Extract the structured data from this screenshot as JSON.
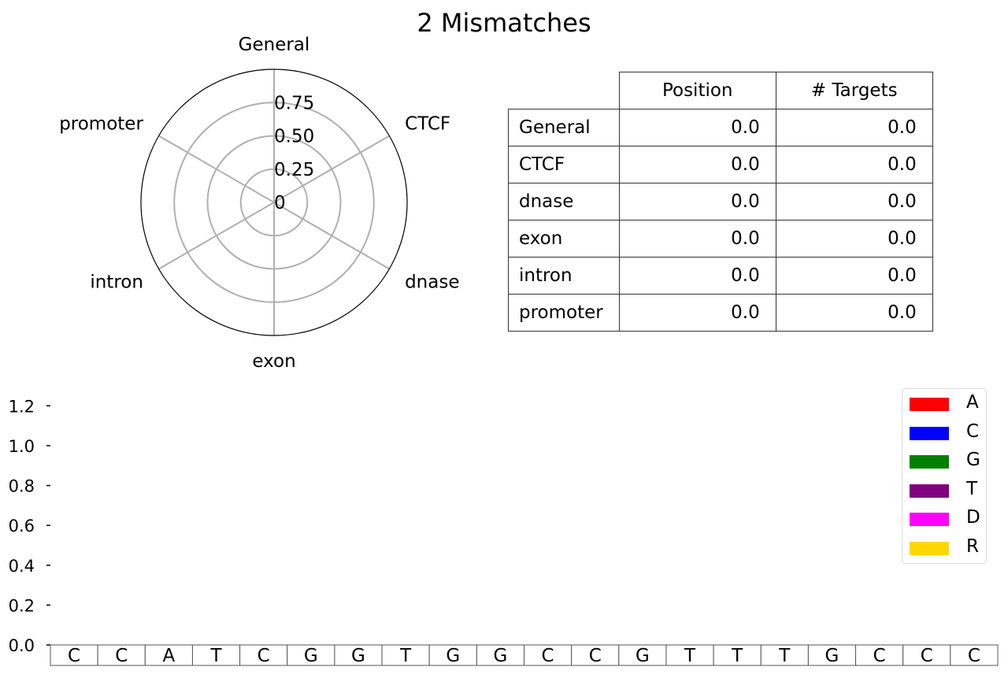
{
  "title": "2 Mismatches",
  "radar": {
    "type": "radar",
    "axes": [
      "General",
      "CTCF",
      "dnase",
      "exon",
      "intron",
      "promoter"
    ],
    "values": [
      0,
      0,
      0,
      0,
      0,
      0
    ],
    "rlim": [
      0,
      1.0
    ],
    "ring_values": [
      0.25,
      0.5,
      0.75
    ],
    "r_tick_labels": [
      "0",
      "0.25",
      "0.50",
      "0.75"
    ],
    "grid": true
  },
  "table": {
    "columns": [
      "",
      "Position",
      "# Targets"
    ],
    "rows": [
      {
        "label": "General",
        "position": "0.0",
        "targets": "0.0"
      },
      {
        "label": "CTCF",
        "position": "0.0",
        "targets": "0.0"
      },
      {
        "label": "dnase",
        "position": "0.0",
        "targets": "0.0"
      },
      {
        "label": "exon",
        "position": "0.0",
        "targets": "0.0"
      },
      {
        "label": "intron",
        "position": "0.0",
        "targets": "0.0"
      },
      {
        "label": "promoter",
        "position": "0.0",
        "targets": "0.0"
      }
    ]
  },
  "chart_data": {
    "type": "bar",
    "ylim": [
      0,
      1.3
    ],
    "y_ticks": [
      0.0,
      0.2,
      0.4,
      0.6,
      0.8,
      1.0,
      1.2
    ],
    "y_tick_labels": [
      "0.0",
      "0.2",
      "0.4",
      "0.6",
      "0.8",
      "1.0",
      "1.2"
    ],
    "sequence": [
      "C",
      "C",
      "A",
      "T",
      "C",
      "G",
      "G",
      "T",
      "G",
      "G",
      "C",
      "C",
      "G",
      "T",
      "T",
      "T",
      "G",
      "C",
      "C",
      "C"
    ],
    "series": [
      {
        "name": "A",
        "color": "#ff0000",
        "values": [
          0,
          0,
          0,
          0,
          0,
          0,
          0,
          0,
          0,
          0,
          0,
          0,
          0,
          0,
          0,
          0,
          0,
          0,
          0,
          0
        ]
      },
      {
        "name": "C",
        "color": "#0000ff",
        "values": [
          0,
          0,
          0,
          0,
          0,
          0,
          0,
          0,
          0,
          0,
          0,
          0,
          0,
          0,
          0,
          0,
          0,
          0,
          0,
          0
        ]
      },
      {
        "name": "G",
        "color": "#008000",
        "values": [
          0,
          0,
          0,
          0,
          0,
          0,
          0,
          0,
          0,
          0,
          0,
          0,
          0,
          0,
          0,
          0,
          0,
          0,
          0,
          0
        ]
      },
      {
        "name": "T",
        "color": "#800080",
        "values": [
          0,
          0,
          0,
          0,
          0,
          0,
          0,
          0,
          0,
          0,
          0,
          0,
          0,
          0,
          0,
          0,
          0,
          0,
          0,
          0
        ]
      },
      {
        "name": "D",
        "color": "#ff00ff",
        "values": [
          0,
          0,
          0,
          0,
          0,
          0,
          0,
          0,
          0,
          0,
          0,
          0,
          0,
          0,
          0,
          0,
          0,
          0,
          0,
          0
        ]
      },
      {
        "name": "R",
        "color": "#ffd700",
        "values": [
          0,
          0,
          0,
          0,
          0,
          0,
          0,
          0,
          0,
          0,
          0,
          0,
          0,
          0,
          0,
          0,
          0,
          0,
          0,
          0
        ]
      }
    ],
    "legend_position": "top-right",
    "grid": false
  }
}
